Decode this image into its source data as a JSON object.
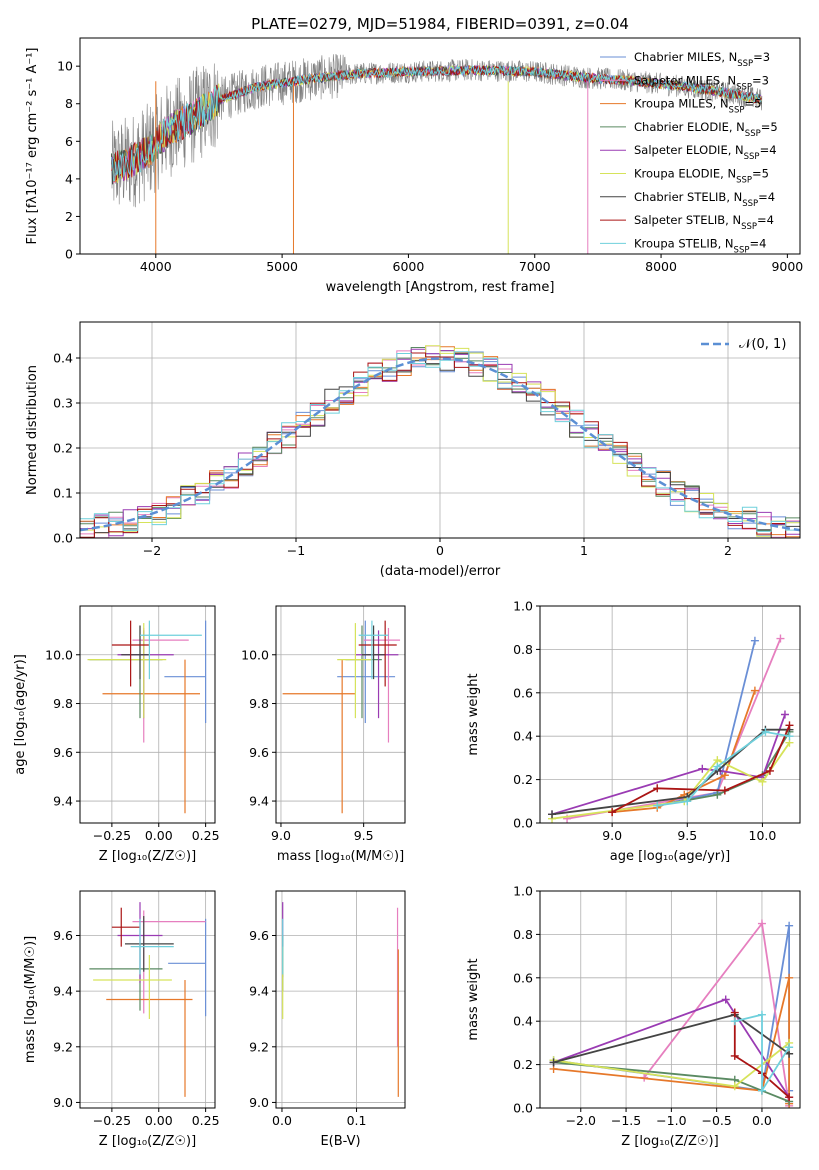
{
  "figure_title": "PLATE=0279, MJD=51984, FIBERID=0391, z=0.04",
  "colors": {
    "chabrier_miles": "#6a8fd6",
    "salpeter_miles": "#e67fbf",
    "kroupa_miles": "#e6782a",
    "chabrier_elodie": "#5a8a62",
    "salpeter_elodie": "#9a3bb3",
    "kroupa_elodie": "#d6e35a",
    "chabrier_stelib": "#444444",
    "salpeter_stelib": "#aa1414",
    "kroupa_stelib": "#6fd0dc",
    "data": "#808080"
  },
  "chart_data": [
    {
      "id": "spectrum",
      "type": "line",
      "xlabel": "wavelength [Angstrom, rest frame]",
      "ylabel": "Flux [fλ10⁻¹⁷ erg cm⁻² s⁻¹ A⁻¹]",
      "xlim": [
        3400,
        9100
      ],
      "ylim": [
        0,
        11.5
      ],
      "xticks": [
        "4000",
        "5000",
        "6000",
        "7000",
        "8000",
        "9000"
      ],
      "yticks": [
        "0",
        "2",
        "4",
        "6",
        "8",
        "10"
      ],
      "continuum": {
        "x": [
          3650,
          3800,
          3950,
          4100,
          4300,
          4500,
          4800,
          5200,
          5600,
          6000,
          6500,
          7000,
          7400,
          7800,
          8200,
          8600,
          8800
        ],
        "y": [
          4.5,
          4.9,
          5.5,
          6.6,
          7.3,
          8.2,
          8.9,
          9.3,
          9.6,
          9.7,
          9.8,
          9.7,
          9.4,
          9.2,
          8.9,
          8.5,
          8.2
        ]
      },
      "legend": [
        "Chabrier MILES, N_SSP=3",
        "Salpeter MILES, N_SSP=3",
        "Kroupa MILES, N_SSP=5",
        "Chabrier ELODIE, N_SSP=5",
        "Salpeter ELODIE, N_SSP=4",
        "Kroupa ELODIE, N_SSP=5",
        "Chabrier STELIB, N_SSP=4",
        "Salpeter STELIB, N_SSP=4",
        "Kroupa STELIB, N_SSP=4"
      ],
      "legend_position": "top-right"
    },
    {
      "id": "residuals",
      "type": "line",
      "xlabel": "(data-model)/error",
      "ylabel": "Normed distribution",
      "xlim": [
        -2.5,
        2.5
      ],
      "ylim": [
        0,
        0.48
      ],
      "xticks": [
        "−2",
        "−1",
        "0",
        "1",
        "2"
      ],
      "yticks": [
        "0.0",
        "0.1",
        "0.2",
        "0.3",
        "0.4"
      ],
      "reference_curve": "𝒩(0, 1)",
      "legend_position": "top-right",
      "grid": true
    },
    {
      "id": "age_vs_Z",
      "type": "scatter",
      "xlabel": "Z [log₁₀(Z/Z☉)]",
      "ylabel": "age  [log₁₀(age/yr)]",
      "xlim": [
        -0.42,
        0.3
      ],
      "ylim": [
        9.31,
        10.2
      ],
      "xticks": [
        "−0.25",
        "0.00",
        "0.25"
      ],
      "yticks": [
        "9.4",
        "9.6",
        "9.8",
        "10.0"
      ],
      "points": [
        {
          "series": "chabrier_miles",
          "x": 0.25,
          "y": 9.91,
          "xerr": [
            0.22,
            0.0
          ],
          "yerr": [
            0.19,
            0.23
          ]
        },
        {
          "series": "salpeter_miles",
          "x": -0.08,
          "y": 10.06,
          "xerr": [
            0.06,
            0.24
          ],
          "yerr": [
            0.42,
            0.05
          ]
        },
        {
          "series": "kroupa_miles",
          "x": 0.14,
          "y": 9.84,
          "xerr": [
            0.44,
            0.08
          ],
          "yerr": [
            0.49,
            0.14
          ]
        },
        {
          "series": "chabrier_elodie",
          "x": -0.1,
          "y": 9.98,
          "xerr": [
            0.27,
            0.12
          ],
          "yerr": [
            0.24,
            0.14
          ]
        },
        {
          "series": "salpeter_elodie",
          "x": -0.08,
          "y": 10.0,
          "xerr": [
            0.14,
            0.16
          ],
          "yerr": [
            0.26,
            0.1
          ]
        },
        {
          "series": "kroupa_elodie",
          "x": -0.08,
          "y": 9.98,
          "xerr": [
            0.3,
            0.12
          ],
          "yerr": [
            0.24,
            0.15
          ]
        },
        {
          "series": "chabrier_stelib",
          "x": -0.1,
          "y": 10.0,
          "xerr": [
            0.1,
            0.05
          ],
          "yerr": [
            0.1,
            0.12
          ]
        },
        {
          "series": "salpeter_stelib",
          "x": -0.15,
          "y": 10.04,
          "xerr": [
            0.1,
            0.1
          ],
          "yerr": [
            0.17,
            0.1
          ]
        },
        {
          "series": "kroupa_stelib",
          "x": -0.05,
          "y": 10.08,
          "xerr": [
            0.05,
            0.28
          ],
          "yerr": [
            0.18,
            0.06
          ]
        }
      ],
      "grid": true
    },
    {
      "id": "age_vs_mass",
      "type": "scatter",
      "xlabel": "mass [log₁₀(M/M☉)]",
      "ylabel": "",
      "xlim": [
        8.97,
        9.75
      ],
      "ylim": [
        9.31,
        10.2
      ],
      "xticks": [
        "9.0",
        "9.5"
      ],
      "yticks": [
        "9.4",
        "9.6",
        "9.8",
        "10.0"
      ],
      "points": [
        {
          "series": "chabrier_miles",
          "x": 9.51,
          "y": 9.91,
          "xerr": [
            0.17,
            0.18
          ],
          "yerr": [
            0.19,
            0.23
          ]
        },
        {
          "series": "salpeter_miles",
          "x": 9.65,
          "y": 10.06,
          "xerr": [
            0.15,
            0.07
          ],
          "yerr": [
            0.42,
            0.05
          ]
        },
        {
          "series": "kroupa_miles",
          "x": 9.37,
          "y": 9.84,
          "xerr": [
            0.36,
            0.08
          ],
          "yerr": [
            0.49,
            0.14
          ]
        },
        {
          "series": "chabrier_elodie",
          "x": 9.49,
          "y": 9.98,
          "xerr": [
            0.1,
            0.12
          ],
          "yerr": [
            0.24,
            0.14
          ]
        },
        {
          "series": "salpeter_elodie",
          "x": 9.59,
          "y": 10.0,
          "xerr": [
            0.14,
            0.12
          ],
          "yerr": [
            0.26,
            0.1
          ]
        },
        {
          "series": "kroupa_elodie",
          "x": 9.45,
          "y": 9.98,
          "xerr": [
            0.11,
            0.1
          ],
          "yerr": [
            0.24,
            0.15
          ]
        },
        {
          "series": "chabrier_stelib",
          "x": 9.56,
          "y": 10.0,
          "xerr": [
            0.07,
            0.07
          ],
          "yerr": [
            0.1,
            0.12
          ]
        },
        {
          "series": "salpeter_stelib",
          "x": 9.63,
          "y": 10.04,
          "xerr": [
            0.16,
            0.07
          ],
          "yerr": [
            0.17,
            0.1
          ]
        },
        {
          "series": "kroupa_stelib",
          "x": 9.55,
          "y": 10.08,
          "xerr": [
            0.08,
            0.1
          ],
          "yerr": [
            0.18,
            0.06
          ]
        }
      ],
      "grid": true
    },
    {
      "id": "massweight_vs_age",
      "type": "line",
      "xlabel": "age  [log₁₀(age/yr)]",
      "ylabel": "mass weight",
      "xlim": [
        8.52,
        10.25
      ],
      "ylim": [
        0,
        1.0
      ],
      "xticks": [
        "9.0",
        "9.5",
        "10.0"
      ],
      "yticks": [
        "0.0",
        "0.2",
        "0.4",
        "0.6",
        "0.8",
        "1.0"
      ],
      "series": [
        {
          "key": "salpeter_miles",
          "x": [
            8.7,
            9.7,
            10.12
          ],
          "y": [
            0.02,
            0.14,
            0.85
          ]
        },
        {
          "key": "chabrier_miles",
          "x": [
            9.3,
            9.7,
            9.95
          ],
          "y": [
            0.08,
            0.14,
            0.84
          ]
        },
        {
          "key": "kroupa_miles",
          "x": [
            9.0,
            9.3,
            9.48,
            9.75,
            9.95
          ],
          "y": [
            0.05,
            0.07,
            0.13,
            0.22,
            0.61
          ]
        },
        {
          "key": "chabrier_elodie",
          "x": [
            9.3,
            9.7,
            10.0,
            10.18
          ],
          "y": [
            0.08,
            0.13,
            0.22,
            0.42
          ]
        },
        {
          "key": "salpeter_elodie",
          "x": [
            8.6,
            9.6,
            9.72,
            10.0,
            10.15
          ],
          "y": [
            0.04,
            0.25,
            0.24,
            0.21,
            0.5
          ]
        },
        {
          "key": "kroupa_elodie",
          "x": [
            8.6,
            9.48,
            9.7,
            10.0,
            10.18
          ],
          "y": [
            0.02,
            0.1,
            0.29,
            0.19,
            0.37
          ]
        },
        {
          "key": "chabrier_stelib",
          "x": [
            8.6,
            9.5,
            9.7,
            10.02,
            10.18
          ],
          "y": [
            0.04,
            0.12,
            0.24,
            0.43,
            0.43
          ]
        },
        {
          "key": "salpeter_stelib",
          "x": [
            9.0,
            9.3,
            9.75,
            10.05,
            10.18
          ],
          "y": [
            0.05,
            0.16,
            0.15,
            0.24,
            0.45
          ]
        },
        {
          "key": "kroupa_stelib",
          "x": [
            9.3,
            9.5,
            9.7,
            10.02,
            10.18
          ],
          "y": [
            0.08,
            0.1,
            0.26,
            0.42,
            0.4
          ]
        }
      ],
      "grid": true
    },
    {
      "id": "mass_vs_Z",
      "type": "scatter",
      "xlabel": "Z [log₁₀(Z/Z☉)]",
      "ylabel": "mass [log₁₀(M/M☉)]",
      "xlim": [
        -0.42,
        0.3
      ],
      "ylim": [
        8.98,
        9.76
      ],
      "xticks": [
        "−0.25",
        "0.00",
        "0.25"
      ],
      "yticks": [
        "9.0",
        "9.2",
        "9.4",
        "9.6"
      ],
      "points": [
        {
          "series": "chabrier_miles",
          "x": 0.25,
          "y": 9.5,
          "xerr": [
            0.2,
            0.0
          ],
          "yerr": [
            0.19,
            0.16
          ]
        },
        {
          "series": "salpeter_miles",
          "x": -0.08,
          "y": 9.65,
          "xerr": [
            0.06,
            0.33
          ],
          "yerr": [
            0.33,
            0.04
          ]
        },
        {
          "series": "kroupa_miles",
          "x": 0.14,
          "y": 9.37,
          "xerr": [
            0.42,
            0.04
          ],
          "yerr": [
            0.35,
            0.07
          ]
        },
        {
          "series": "chabrier_elodie",
          "x": -0.1,
          "y": 9.48,
          "xerr": [
            0.27,
            0.12
          ],
          "yerr": [
            0.15,
            0.09
          ]
        },
        {
          "series": "salpeter_elodie",
          "x": -0.1,
          "y": 9.6,
          "xerr": [
            0.12,
            0.12
          ],
          "yerr": [
            0.17,
            0.12
          ]
        },
        {
          "series": "kroupa_elodie",
          "x": -0.05,
          "y": 9.44,
          "xerr": [
            0.3,
            0.12
          ],
          "yerr": [
            0.14,
            0.09
          ]
        },
        {
          "series": "chabrier_stelib",
          "x": -0.08,
          "y": 9.57,
          "xerr": [
            0.1,
            0.16
          ],
          "yerr": [
            0.1,
            0.1
          ]
        },
        {
          "series": "salpeter_stelib",
          "x": -0.2,
          "y": 9.63,
          "xerr": [
            0.05,
            0.1
          ],
          "yerr": [
            0.07,
            0.07
          ]
        },
        {
          "series": "kroupa_stelib",
          "x": -0.1,
          "y": 9.56,
          "xerr": [
            0.05,
            0.18
          ],
          "yerr": [
            0.1,
            0.1
          ]
        }
      ],
      "grid": true
    },
    {
      "id": "mass_vs_ebv",
      "type": "scatter",
      "xlabel": "E(B-V)",
      "ylabel": "",
      "xlim": [
        -0.008,
        0.165
      ],
      "ylim": [
        8.98,
        9.76
      ],
      "xticks": [
        "0.0",
        "0.1"
      ],
      "yticks": [
        "9.0",
        "9.2",
        "9.4",
        "9.6"
      ],
      "points": [
        {
          "series": "salpeter_miles",
          "x": 0.155,
          "y": 9.55,
          "xerr": [
            0,
            0
          ],
          "yerr": [
            0.35,
            0.15
          ]
        },
        {
          "series": "kroupa_miles",
          "x": 0.156,
          "y": 9.37,
          "xerr": [
            0,
            0
          ],
          "yerr": [
            0.35,
            0.18
          ]
        },
        {
          "series": "salpeter_elodie",
          "x": 0.001,
          "y": 9.6,
          "xerr": [
            0,
            0
          ],
          "yerr": [
            0.15,
            0.12
          ]
        },
        {
          "series": "chabrier_elodie",
          "x": 0.001,
          "y": 9.5,
          "xerr": [
            0,
            0
          ],
          "yerr": [
            0.1,
            0.1
          ]
        },
        {
          "series": "kroupa_elodie",
          "x": 0.001,
          "y": 9.44,
          "xerr": [
            0,
            0
          ],
          "yerr": [
            0.14,
            0.12
          ]
        },
        {
          "series": "kroupa_stelib",
          "x": 0.001,
          "y": 9.56,
          "xerr": [
            0,
            0
          ],
          "yerr": [
            0.1,
            0.1
          ]
        }
      ],
      "grid": true
    },
    {
      "id": "massweight_vs_Z",
      "type": "line",
      "xlabel": "Z [log₁₀(Z/Z☉)]",
      "ylabel": "mass weight",
      "xlim": [
        -2.45,
        0.42
      ],
      "ylim": [
        0,
        1.0
      ],
      "xticks": [
        "−2.0",
        "−1.5",
        "−1.0",
        "−0.5",
        "0.0"
      ],
      "yticks": [
        "0.0",
        "0.2",
        "0.4",
        "0.6",
        "0.8",
        "1.0"
      ],
      "series": [
        {
          "key": "chabrier_miles",
          "x": [
            -2.3,
            0.0,
            0.3,
            0.3
          ],
          "y": [
            0.22,
            0.08,
            0.84,
            0.08
          ]
        },
        {
          "key": "salpeter_miles",
          "x": [
            -1.3,
            0.0,
            0.3
          ],
          "y": [
            0.14,
            0.85,
            0.01
          ]
        },
        {
          "key": "kroupa_miles",
          "x": [
            -2.3,
            0.0,
            0.3,
            0.3
          ],
          "y": [
            0.18,
            0.08,
            0.6,
            0.02
          ]
        },
        {
          "key": "chabrier_elodie",
          "x": [
            -2.3,
            -0.3,
            0.3
          ],
          "y": [
            0.21,
            0.13,
            0.03
          ]
        },
        {
          "key": "salpeter_elodie",
          "x": [
            -2.3,
            -0.4,
            0.3
          ],
          "y": [
            0.21,
            0.5,
            0.05
          ]
        },
        {
          "key": "kroupa_elodie",
          "x": [
            -2.3,
            -0.3,
            0.3
          ],
          "y": [
            0.22,
            0.1,
            0.3
          ]
        },
        {
          "key": "chabrier_stelib",
          "x": [
            -2.3,
            -0.3,
            0.3
          ],
          "y": [
            0.21,
            0.43,
            0.25
          ]
        },
        {
          "key": "salpeter_stelib",
          "x": [
            -0.3,
            -0.3,
            0.0,
            0.3
          ],
          "y": [
            0.44,
            0.24,
            0.16,
            0.05
          ]
        },
        {
          "key": "kroupa_stelib",
          "x": [
            -0.3,
            0.0,
            0.0,
            0.3
          ],
          "y": [
            0.4,
            0.43,
            0.08,
            0.28
          ]
        }
      ],
      "grid": true
    }
  ]
}
